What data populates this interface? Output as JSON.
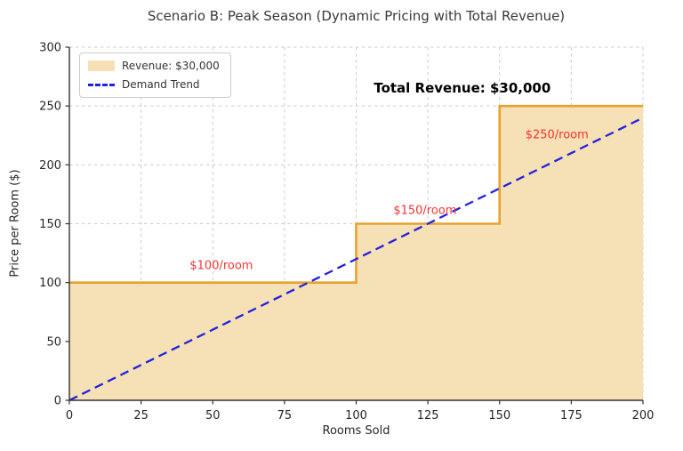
{
  "title": "Scenario B: Peak Season (Dynamic Pricing with Total Revenue)",
  "chart_data": {
    "type": "area",
    "title": "Scenario B: Peak Season (Dynamic Pricing with Total Revenue)",
    "xlabel": "Rooms Sold",
    "ylabel": "Price per Room ($)",
    "xlim": [
      0,
      200
    ],
    "ylim": [
      0,
      300
    ],
    "x_ticks": [
      0,
      25,
      50,
      75,
      100,
      125,
      150,
      175,
      200
    ],
    "y_ticks": [
      0,
      50,
      100,
      150,
      200,
      250,
      300
    ],
    "grid": true,
    "colors": {
      "step_line": "#e8a22c",
      "area_fill": "#f6e0b5",
      "demand_line": "#2222dd",
      "annotation_red": "#f43434",
      "grid": "#cccccc",
      "spine": "#333333",
      "tick_text": "#262626"
    },
    "series": [
      {
        "name": "Revenue: $30,000",
        "type": "step-area",
        "segments": [
          {
            "x_start": 0,
            "x_end": 100,
            "price": 100
          },
          {
            "x_start": 100,
            "x_end": 150,
            "price": 150
          },
          {
            "x_start": 150,
            "x_end": 200,
            "price": 250
          }
        ]
      },
      {
        "name": "Demand Trend",
        "type": "line",
        "style": "dashed",
        "points": [
          [
            0,
            0
          ],
          [
            200,
            240
          ]
        ]
      }
    ],
    "legend": {
      "position": "upper-left",
      "entries": [
        {
          "label": "Revenue: $30,000",
          "type": "patch"
        },
        {
          "label": "Demand Trend",
          "type": "dashed-line"
        }
      ]
    },
    "annotations": [
      {
        "name": "price-label-100",
        "text": "$100/room",
        "x": 53,
        "y": 114,
        "color": "#f43434",
        "bold": false
      },
      {
        "name": "price-label-150",
        "text": "$150/room",
        "x": 124,
        "y": 161,
        "color": "#f43434",
        "bold": false
      },
      {
        "name": "price-label-250",
        "text": "$250/room",
        "x": 170,
        "y": 225,
        "color": "#f43434",
        "bold": false
      },
      {
        "name": "total-revenue-label",
        "text": "Total Revenue: $30,000",
        "x": 137,
        "y": 265,
        "color": "#000000",
        "bold": true
      }
    ]
  }
}
